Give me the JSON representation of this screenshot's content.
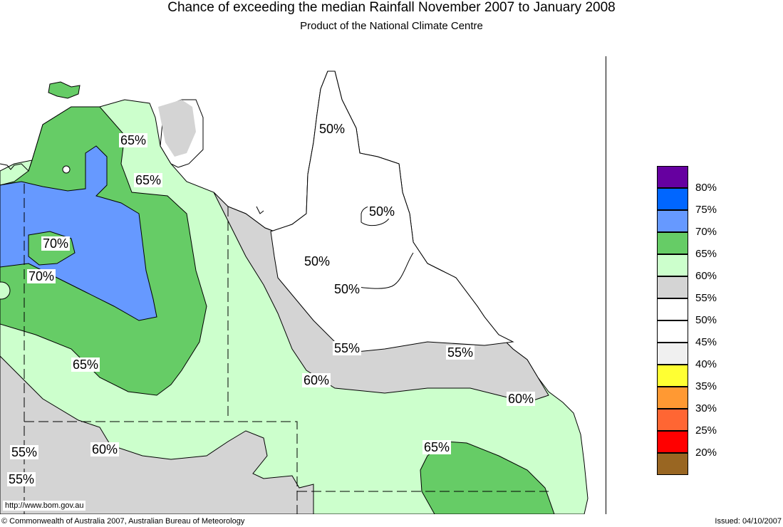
{
  "header": {
    "title": "Chance of exceeding the median Rainfall November 2007 to January 2008",
    "subtitle": "Product of the National Climate Centre"
  },
  "legend": {
    "items": [
      {
        "label": "80%",
        "color": "#6600a0"
      },
      {
        "label": "75%",
        "color": "#0066ff"
      },
      {
        "label": "70%",
        "color": "#6699ff"
      },
      {
        "label": "65%",
        "color": "#66cc66"
      },
      {
        "label": "60%",
        "color": "#ccffcc"
      },
      {
        "label": "55%",
        "color": "#d4d4d4"
      },
      {
        "label": "50%",
        "color": "#ffffff"
      },
      {
        "label": "45%",
        "color": "#ffffff"
      },
      {
        "label": "40%",
        "color": "#f0f0f0"
      },
      {
        "label": "35%",
        "color": "#ffff33"
      },
      {
        "label": "30%",
        "color": "#ff9933"
      },
      {
        "label": "25%",
        "color": "#ff6633"
      },
      {
        "label": "20%",
        "color": "#ff0000"
      },
      {
        "label": "",
        "color": "#996622"
      }
    ]
  },
  "map_labels": [
    {
      "id": "l65a",
      "text": "65%"
    },
    {
      "id": "l65b",
      "text": "65%"
    },
    {
      "id": "l50a",
      "text": "50%"
    },
    {
      "id": "l50b",
      "text": "50%"
    },
    {
      "id": "l70a",
      "text": "70%"
    },
    {
      "id": "l70b",
      "text": "70%"
    },
    {
      "id": "l50c",
      "text": "50%"
    },
    {
      "id": "l50d",
      "text": "50%"
    },
    {
      "id": "l55a",
      "text": "55%"
    },
    {
      "id": "l55b",
      "text": "55%"
    },
    {
      "id": "l65c",
      "text": "65%"
    },
    {
      "id": "l60a",
      "text": "60%"
    },
    {
      "id": "l60b",
      "text": "60%"
    },
    {
      "id": "l55c",
      "text": "55%"
    },
    {
      "id": "l60c",
      "text": "60%"
    },
    {
      "id": "l65d",
      "text": "65%"
    },
    {
      "id": "l55d",
      "text": "55%"
    }
  ],
  "footer": {
    "url": "http://www.bom.gov.au",
    "copyright": "© Commonwealth of Australia 2007, Australian Bureau of Meteorology",
    "issued": "Issued: 04/10/2007"
  },
  "colors": {
    "sea": "#ffffff",
    "p70": "#6699ff",
    "p65": "#66cc66",
    "p60": "#ccffcc",
    "p55": "#d4d4d4",
    "p50": "#ffffff"
  }
}
